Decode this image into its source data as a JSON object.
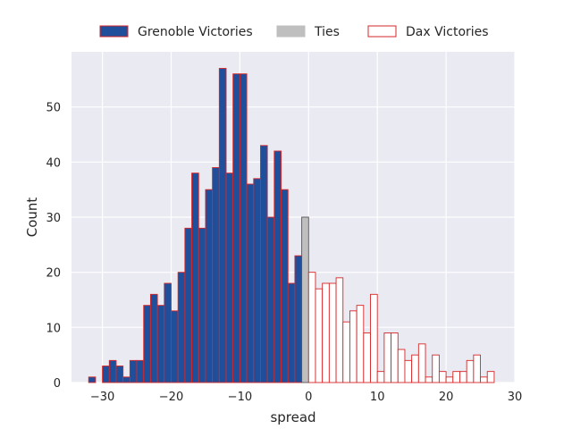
{
  "chart_data": {
    "type": "bar",
    "subtype": "histogram",
    "xlabel": "spread",
    "ylabel": "Count",
    "xlim": [
      -34.5,
      30
    ],
    "ylim": [
      0,
      60
    ],
    "xticks": [
      -30,
      -20,
      -10,
      0,
      10,
      20,
      30
    ],
    "yticks": [
      0,
      10,
      20,
      30,
      40,
      50
    ],
    "grid": true,
    "legend": "top-center",
    "colors": {
      "background": "#EAEAF2",
      "grid": "#FFFFFF",
      "grenoble_fill": "#1F4E9A",
      "bar_edge": "#D62728",
      "ties_fill": "#BFBFBF",
      "ties_edge": "#555555",
      "dax_fill": "#FFFFFF"
    },
    "series": [
      {
        "name": "Grenoble Victories",
        "x": [
          -31,
          -29,
          -28,
          -27,
          -26,
          -25,
          -24,
          -23,
          -22,
          -21,
          -20,
          -19,
          -18,
          -17,
          -16,
          -15,
          -14,
          -13,
          -12,
          -11,
          -10,
          -9,
          -8,
          -7,
          -6,
          -5,
          -4,
          -3,
          -2,
          -1
        ],
        "values": [
          1,
          3,
          4,
          3,
          1,
          4,
          4,
          14,
          16,
          14,
          18,
          13,
          20,
          28,
          38,
          28,
          35,
          39,
          57,
          38,
          56,
          56,
          36,
          37,
          43,
          30,
          42,
          35,
          18,
          23
        ]
      },
      {
        "name": "Ties",
        "x": [
          0
        ],
        "values": [
          30
        ]
      },
      {
        "name": "Dax Victories",
        "x": [
          1,
          2,
          3,
          4,
          5,
          6,
          7,
          8,
          9,
          10,
          11,
          12,
          13,
          14,
          15,
          16,
          17,
          18,
          19,
          20,
          21,
          22,
          23,
          24,
          25,
          26,
          27
        ],
        "values": [
          20,
          17,
          18,
          18,
          19,
          11,
          13,
          14,
          9,
          16,
          2,
          9,
          9,
          6,
          4,
          5,
          7,
          1,
          5,
          2,
          1,
          2,
          2,
          4,
          5,
          1,
          2
        ]
      }
    ]
  }
}
